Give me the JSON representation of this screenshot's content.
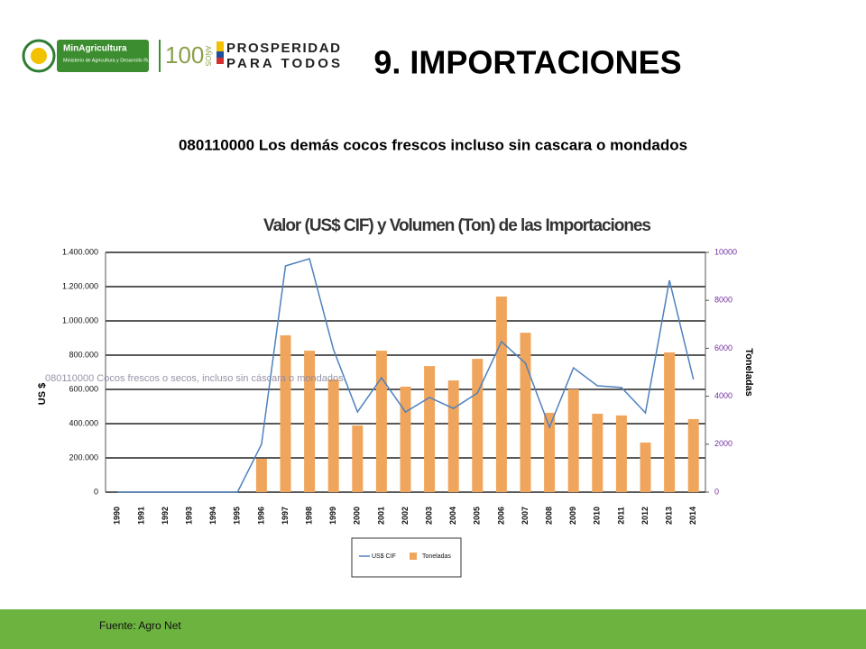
{
  "header": {
    "logo_ministry": "MinAgricultura",
    "logo_ministry_sub": "Ministerio de Agricultura y Desarrollo Rural",
    "logo_years": "100",
    "logo_years_word": "AÑOS",
    "logo_slogan_1": "PROSPERIDAD",
    "logo_slogan_2": "PARA TODOS",
    "title": "9. IMPORTACIONES"
  },
  "subtitle": "080110000 Los demás cocos frescos incluso sin cascara o mondados",
  "chart_data": {
    "type": "bar",
    "title": "Valor (US$ CIF) y Volumen (Ton) de las Importaciones",
    "annotation": "080110000 Cocos frescos o secos, incluso sin cáscara o mondados.",
    "y_label": "US $",
    "y2_label": "Toneladas",
    "categories": [
      "1990",
      "1991",
      "1992",
      "1993",
      "1994",
      "1995",
      "1996",
      "1997",
      "1998",
      "1999",
      "2000",
      "2001",
      "2002",
      "2003",
      "2004",
      "2005",
      "2006",
      "2007",
      "2008",
      "2009",
      "2010",
      "2011",
      "2012",
      "2013",
      "2014"
    ],
    "series": [
      {
        "name": "US$ CIF",
        "type": "line",
        "color": "#4f81bd",
        "values": [
          0,
          0,
          0,
          0,
          0,
          0,
          280000,
          1321000,
          1363000,
          832000,
          468000,
          668000,
          468000,
          553000,
          489000,
          579000,
          879000,
          753000,
          379000,
          726000,
          621000,
          611000,
          463000,
          1237000,
          658000
        ]
      },
      {
        "name": "Toneladas",
        "type": "bar",
        "axis": "y2",
        "color": "#f0a55c",
        "values": [
          0,
          0,
          0,
          0,
          0,
          0,
          1390,
          6540,
          5900,
          4700,
          2780,
          5900,
          4400,
          5260,
          4660,
          5560,
          8160,
          6650,
          3310,
          4290,
          3270,
          3200,
          2070,
          5830,
          3050
        ]
      }
    ],
    "ylim": [
      0,
      1400000
    ],
    "yticks": [
      0,
      {
        "value": 200000,
        "label": "200.000"
      },
      {
        "value": 400000,
        "label": "400.000"
      },
      {
        "value": 600000,
        "label": "600.000"
      },
      {
        "value": 800000,
        "label": "800.000"
      },
      {
        "value": 1000000,
        "label": "1.000.000"
      },
      {
        "value": 1200000,
        "label": "1.200.000"
      },
      {
        "value": 1400000,
        "label": "1.400.000"
      }
    ],
    "y2lim": [
      0,
      10000
    ],
    "y2ticks": [
      0,
      2000,
      4000,
      6000,
      8000,
      10000
    ],
    "grid": true
  },
  "footer": "Fuente: Agro Net"
}
